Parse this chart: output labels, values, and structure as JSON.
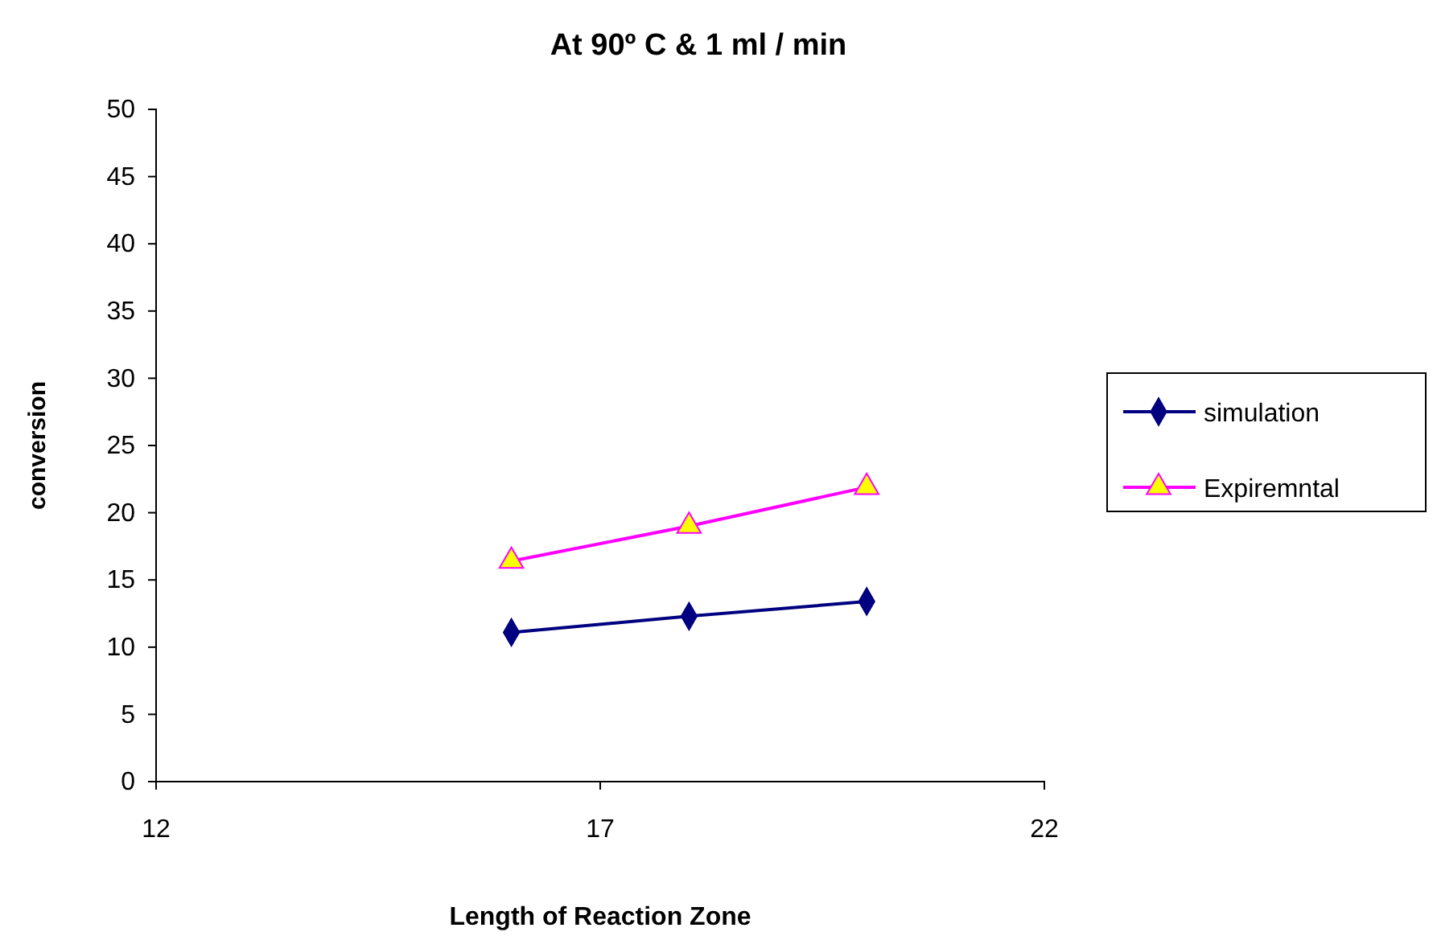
{
  "chart_data": {
    "type": "line",
    "title": "At 90º C & 1 ml / min",
    "xlabel": "Length of Reaction Zone",
    "ylabel": "conversion",
    "x": [
      16,
      18,
      20
    ],
    "series": [
      {
        "name": "simulation",
        "color": "#000080",
        "marker": "diamond",
        "values": [
          11.1,
          12.3,
          13.4
        ]
      },
      {
        "name": "Expiremntal",
        "color": "#ff00ff",
        "marker": "triangle",
        "values": [
          16.4,
          19.0,
          21.9
        ]
      }
    ],
    "xlim": [
      12,
      22
    ],
    "xticks": [
      12,
      17,
      22
    ],
    "ylim": [
      0,
      50
    ],
    "yticks": [
      0,
      5,
      10,
      15,
      20,
      25,
      30,
      35,
      40,
      45,
      50
    ],
    "grid": false,
    "legend": "right",
    "line_style": "solid"
  }
}
